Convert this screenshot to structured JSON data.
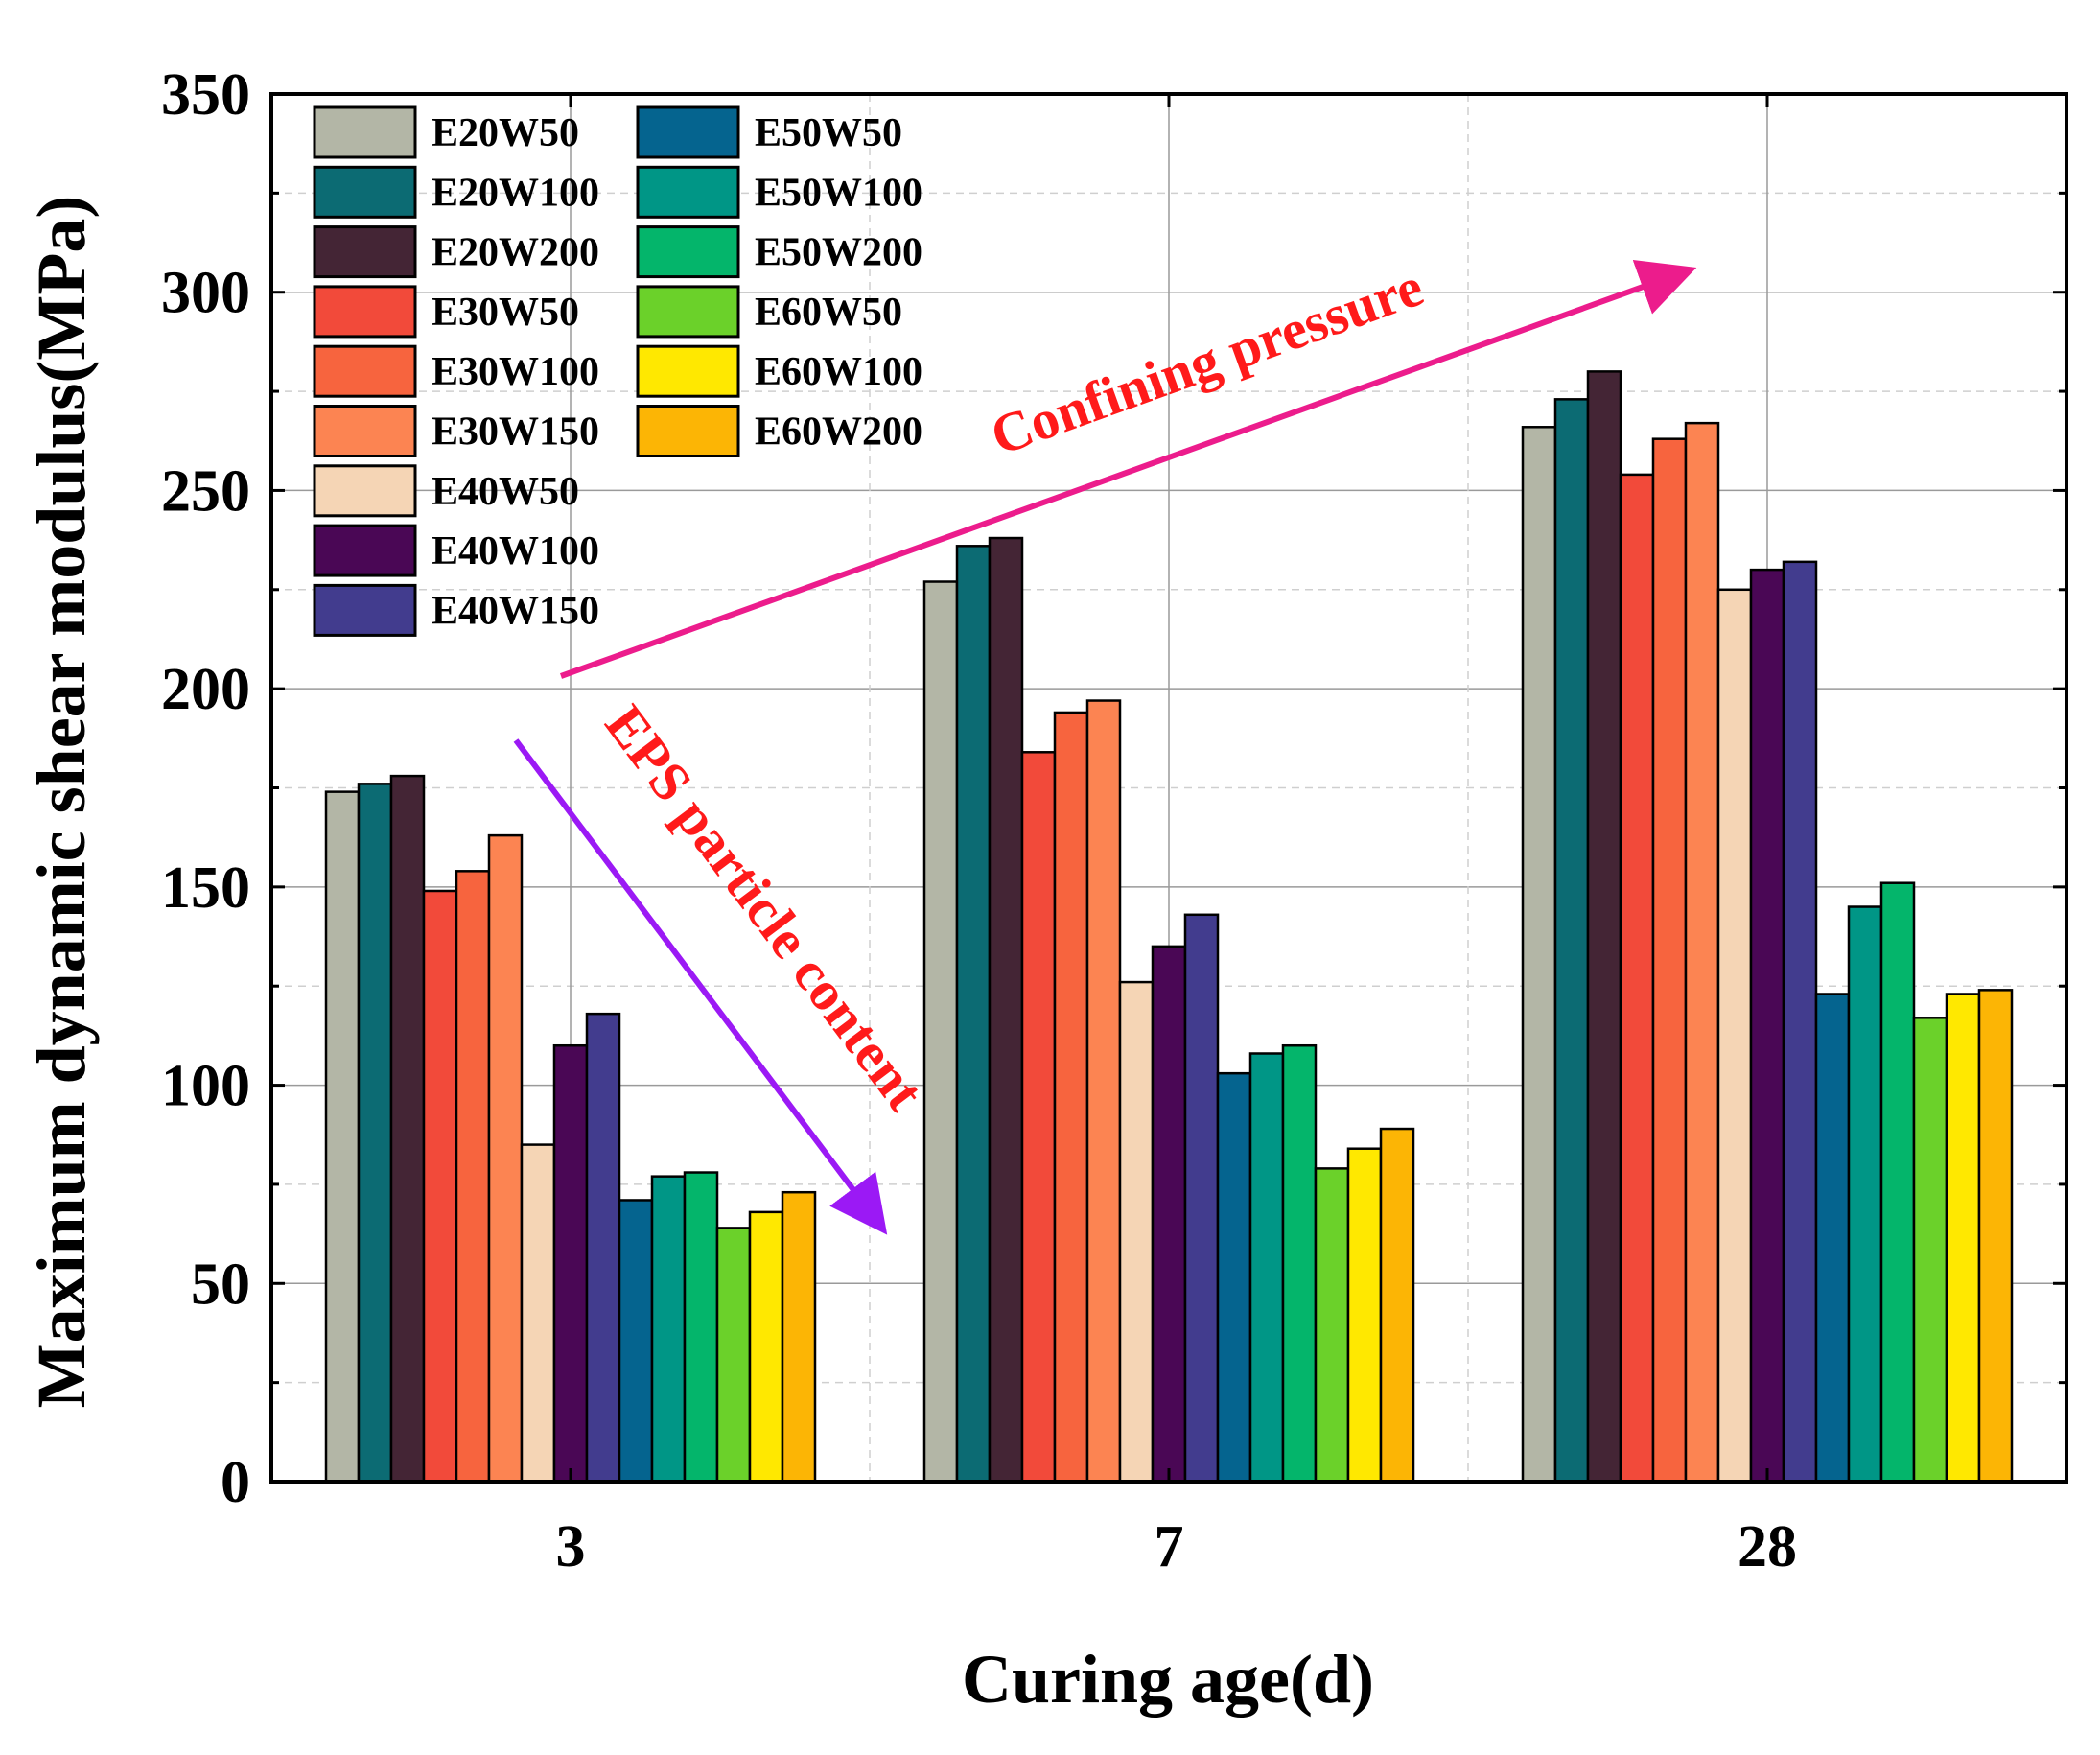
{
  "chart_data": {
    "type": "bar",
    "categories": [
      "3",
      "7",
      "28"
    ],
    "xlabel": "Curing age(d)",
    "ylabel": "Maximum dynamic shear modulus(MPa)",
    "ylim": [
      0,
      350
    ],
    "yticks": [
      0,
      50,
      100,
      150,
      200,
      250,
      300,
      350
    ],
    "grid": true,
    "legend_position": "top-left",
    "series": [
      {
        "name": "E20W50",
        "color": "#b3b6a6",
        "values": [
          174,
          227,
          266
        ]
      },
      {
        "name": "E20W100",
        "color": "#0c6b73",
        "values": [
          176,
          236,
          273
        ]
      },
      {
        "name": "E20W200",
        "color": "#442535",
        "values": [
          178,
          238,
          280
        ]
      },
      {
        "name": "E30W50",
        "color": "#f24a3a",
        "values": [
          149,
          184,
          254
        ]
      },
      {
        "name": "E30W100",
        "color": "#f7643e",
        "values": [
          154,
          194,
          263
        ]
      },
      {
        "name": "E30W150",
        "color": "#fc8452",
        "values": [
          163,
          197,
          267
        ]
      },
      {
        "name": "E40W50",
        "color": "#f5d5b5",
        "values": [
          85,
          126,
          225
        ]
      },
      {
        "name": "E40W100",
        "color": "#4a0755",
        "values": [
          110,
          135,
          230
        ]
      },
      {
        "name": "E40W150",
        "color": "#423c8e",
        "values": [
          118,
          143,
          232
        ]
      },
      {
        "name": "E50W50",
        "color": "#05648f",
        "values": [
          71,
          103,
          123
        ]
      },
      {
        "name": "E50W100",
        "color": "#009686",
        "values": [
          77,
          108,
          145
        ]
      },
      {
        "name": "E50W200",
        "color": "#04b56b",
        "values": [
          78,
          110,
          151
        ]
      },
      {
        "name": "E60W50",
        "color": "#6bd12a",
        "values": [
          64,
          79,
          117
        ]
      },
      {
        "name": "E60W100",
        "color": "#ffe800",
        "values": [
          68,
          84,
          123
        ]
      },
      {
        "name": "E60W200",
        "color": "#fcb505",
        "values": [
          73,
          89,
          124
        ]
      }
    ],
    "annotations": [
      {
        "text": "Confining pressure",
        "color": "#ff1a1a",
        "arrow_color": "#ec1c8c"
      },
      {
        "text": "EPS particle content",
        "color": "#ff1a1a",
        "arrow_color": "#9b19f5"
      }
    ]
  }
}
